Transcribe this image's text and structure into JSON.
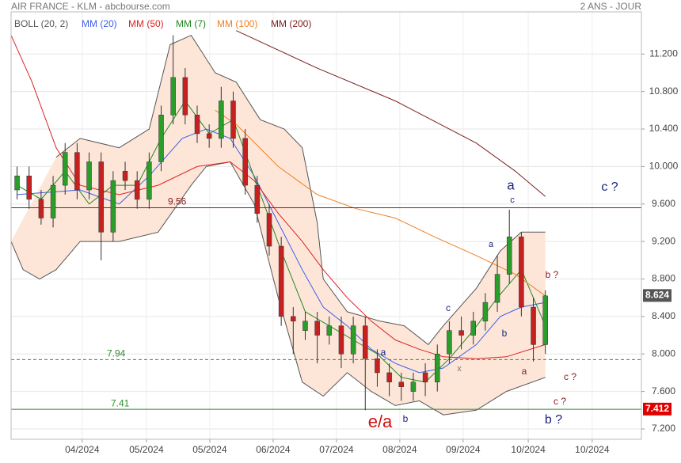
{
  "chart_data": {
    "type": "candlestick",
    "title": "AIR FRANCE - KLM - abcbourse.com",
    "subtitle": "2 ANS - JOUR",
    "xlim": [
      0,
      210
    ],
    "ylim": [
      7.09,
      11.65
    ],
    "xticks": [
      {
        "value": 23.7,
        "label": "04/2024"
      },
      {
        "value": 45.1,
        "label": "05/2024"
      },
      {
        "value": 66.2,
        "label": "05/2024"
      },
      {
        "value": 87.3,
        "label": "06/2024"
      },
      {
        "value": 108.4,
        "label": "07/2024"
      },
      {
        "value": 129.5,
        "label": "08/2024"
      },
      {
        "value": 150.6,
        "label": "09/2024"
      },
      {
        "value": 172.3,
        "label": "10/2024"
      },
      {
        "value": 193.6,
        "label": "10/2024"
      }
    ],
    "yticks": [
      {
        "value": 7.2,
        "label": "7.200"
      },
      {
        "value": 7.6,
        "label": "7.600"
      },
      {
        "value": 8.0,
        "label": "8.000"
      },
      {
        "value": 8.4,
        "label": "8.400"
      },
      {
        "value": 8.8,
        "label": "8.800"
      },
      {
        "value": 9.2,
        "label": "9.200"
      },
      {
        "value": 9.6,
        "label": "9.600"
      },
      {
        "value": 10.0,
        "label": "10.000"
      },
      {
        "value": 10.4,
        "label": "10.400"
      },
      {
        "value": 10.8,
        "label": "10.800"
      },
      {
        "value": 11.2,
        "label": "11.200"
      }
    ],
    "grid": true,
    "up_color": "#2a9d2a",
    "down_color": "#c62020",
    "x": [
      2,
      6,
      10,
      14,
      18,
      22,
      26,
      30,
      34,
      38,
      42,
      46,
      50,
      54,
      58,
      62,
      66,
      70,
      74,
      78,
      82,
      86,
      90,
      94,
      98,
      102,
      106,
      110,
      114,
      118,
      122,
      126,
      130,
      134,
      138,
      142,
      146,
      150,
      154,
      158,
      162,
      166,
      170,
      174,
      178
    ],
    "open": [
      9.75,
      9.9,
      9.65,
      9.45,
      9.8,
      10.15,
      9.75,
      10.05,
      9.3,
      9.95,
      9.85,
      9.65,
      10.05,
      10.55,
      10.95,
      10.55,
      10.35,
      10.3,
      10.7,
      10.3,
      9.8,
      9.5,
      9.15,
      8.4,
      8.25,
      8.35,
      8.2,
      8.3,
      8.0,
      8.3,
      7.95,
      7.8,
      7.7,
      7.6,
      7.8,
      7.7,
      8.0,
      8.25,
      8.2,
      8.35,
      8.55,
      8.85,
      9.25,
      8.5,
      8.1
    ],
    "high": [
      10.0,
      10.0,
      9.75,
      9.9,
      10.25,
      10.25,
      10.15,
      10.15,
      9.95,
      10.05,
      9.95,
      10.15,
      10.65,
      11.4,
      11.05,
      10.65,
      10.45,
      10.85,
      10.8,
      10.4,
      9.9,
      9.6,
      9.25,
      8.5,
      8.45,
      8.45,
      8.4,
      8.4,
      8.4,
      8.4,
      8.05,
      7.9,
      7.8,
      7.8,
      7.9,
      8.1,
      8.35,
      8.4,
      8.45,
      8.65,
      9.05,
      9.54,
      9.3,
      8.6,
      8.68
    ],
    "low": [
      9.65,
      9.55,
      9.38,
      9.35,
      9.7,
      9.65,
      9.65,
      9.0,
      9.2,
      9.75,
      9.55,
      9.55,
      9.95,
      10.45,
      10.45,
      10.25,
      10.2,
      10.2,
      10.2,
      9.7,
      9.4,
      9.05,
      8.3,
      8.0,
      8.15,
      7.9,
      8.1,
      7.85,
      7.9,
      7.4,
      7.65,
      7.55,
      7.5,
      7.5,
      7.55,
      7.6,
      7.9,
      8.05,
      8.1,
      8.25,
      8.45,
      8.75,
      8.4,
      7.92,
      8.0
    ],
    "close": [
      9.9,
      9.65,
      9.45,
      9.8,
      10.15,
      9.75,
      10.05,
      9.3,
      9.85,
      9.85,
      9.65,
      10.05,
      10.55,
      10.95,
      10.55,
      10.35,
      10.3,
      10.7,
      10.3,
      9.8,
      9.5,
      9.15,
      8.4,
      8.35,
      8.35,
      8.2,
      8.3,
      8.0,
      8.3,
      7.95,
      7.8,
      7.7,
      7.65,
      7.7,
      7.7,
      8.0,
      8.25,
      8.2,
      8.35,
      8.55,
      8.85,
      9.25,
      8.5,
      8.1,
      8.62
    ],
    "bollinger": {
      "name": "BOLL (20, 2)",
      "color": "#555555",
      "fill": "#fde6d8",
      "upper": {
        "x": [
          15,
          23,
          36,
          46,
          53,
          60,
          68,
          75,
          83,
          91,
          97,
          102,
          104,
          112,
          123,
          131,
          139,
          144,
          155,
          163,
          170,
          178
        ],
        "values": [
          10.1,
          10.3,
          10.2,
          10.4,
          11.3,
          11.4,
          11.0,
          10.9,
          10.5,
          10.4,
          10.2,
          9.4,
          8.8,
          8.45,
          8.35,
          8.3,
          8.1,
          8.3,
          8.7,
          9.1,
          9.3,
          9.3
        ]
      },
      "lower": {
        "x": [
          0,
          4,
          9.5,
          15,
          23,
          36,
          49,
          60,
          65,
          73,
          81,
          89,
          97,
          104,
          112,
          120,
          128,
          136,
          144,
          155,
          165,
          178
        ],
        "values": [
          9.2,
          8.9,
          8.8,
          8.9,
          9.2,
          9.2,
          9.3,
          9.8,
          10.0,
          10.05,
          9.6,
          8.6,
          7.7,
          7.55,
          7.8,
          7.6,
          7.45,
          7.5,
          7.35,
          7.4,
          7.6,
          7.75
        ]
      }
    },
    "series": [
      {
        "name": "MM (20)",
        "color": "#3d5ee8",
        "x": [
          2,
          23,
          36,
          46,
          57,
          65,
          73,
          81,
          89,
          97,
          104,
          112,
          120,
          128,
          136,
          144,
          155,
          163,
          170,
          178
        ],
        "values": [
          9.7,
          9.75,
          9.6,
          9.9,
          10.3,
          10.4,
          10.3,
          9.9,
          9.4,
          8.9,
          8.5,
          8.3,
          8.05,
          7.9,
          7.8,
          7.85,
          8.1,
          8.4,
          8.5,
          8.55
        ]
      },
      {
        "name": "MM (50)",
        "color": "#dd2222",
        "x": [
          0,
          7,
          15,
          23,
          36,
          49,
          62,
          73,
          81,
          89,
          97,
          104,
          112,
          120,
          128,
          136,
          144,
          155,
          165,
          178
        ],
        "values": [
          11.4,
          10.9,
          10.2,
          9.8,
          9.7,
          9.8,
          10.0,
          10.05,
          9.85,
          9.5,
          9.2,
          8.9,
          8.6,
          8.35,
          8.15,
          8.05,
          7.97,
          7.95,
          7.97,
          8.1
        ]
      },
      {
        "name": "MM (7)",
        "color": "#228822",
        "x": [
          2,
          10,
          18,
          26,
          34,
          42,
          50,
          58,
          66,
          74,
          82,
          90,
          98,
          106,
          114,
          122,
          130,
          138,
          146,
          154,
          162,
          170,
          178
        ],
        "values": [
          9.8,
          9.65,
          9.95,
          9.6,
          9.8,
          9.8,
          10.3,
          10.7,
          10.35,
          10.5,
          9.8,
          9.1,
          8.45,
          8.3,
          8.15,
          8.0,
          7.75,
          7.7,
          7.95,
          8.25,
          8.6,
          8.9,
          8.3
        ]
      },
      {
        "name": "MM (100)",
        "color": "#f07f20",
        "x": [
          68,
          75,
          89,
          102,
          115,
          128,
          141,
          155,
          168,
          178
        ],
        "values": [
          10.6,
          10.45,
          10.0,
          9.7,
          9.55,
          9.45,
          9.25,
          9.05,
          8.85,
          8.62
        ]
      },
      {
        "name": "MM (200)",
        "color": "#7a1f1f",
        "x": [
          75,
          102,
          128,
          155,
          168,
          178
        ],
        "values": [
          11.45,
          11.05,
          10.7,
          10.25,
          9.95,
          9.68
        ]
      }
    ],
    "levels": [
      {
        "value": 9.56,
        "color": "#8b1a1a",
        "dashed": false
      },
      {
        "value": 7.94,
        "color": "#2e8b2e",
        "dashed": true
      },
      {
        "value": 7.41,
        "color": "#2e8b2e",
        "dashed": false
      }
    ],
    "price_tags": [
      {
        "value": 8.624,
        "color": "#555555"
      },
      {
        "value": 7.412,
        "color": "#e00000"
      }
    ],
    "annotations": [
      {
        "text": "a",
        "color": "#1a237e"
      },
      {
        "text": "c ?",
        "color": "#1a237e"
      },
      {
        "text": "c",
        "color": "#1a237e"
      },
      {
        "text": "a",
        "color": "#1a237e"
      },
      {
        "text": "b ?",
        "color": "#8b1a1a"
      },
      {
        "text": "c",
        "color": "#1a237e"
      },
      {
        "text": "b",
        "color": "#1a237e"
      },
      {
        "text": "x",
        "color": "#777777"
      },
      {
        "text": "a",
        "color": "#1a237e"
      },
      {
        "text": "a",
        "color": "#8b1a1a"
      },
      {
        "text": "c ?",
        "color": "#8b1a1a"
      },
      {
        "text": "c ?",
        "color": "#8b1a1a"
      },
      {
        "text": "e/a",
        "color": "#d01010"
      },
      {
        "text": "b",
        "color": "#1a237e"
      },
      {
        "text": "b ?",
        "color": "#1a237e"
      }
    ]
  }
}
